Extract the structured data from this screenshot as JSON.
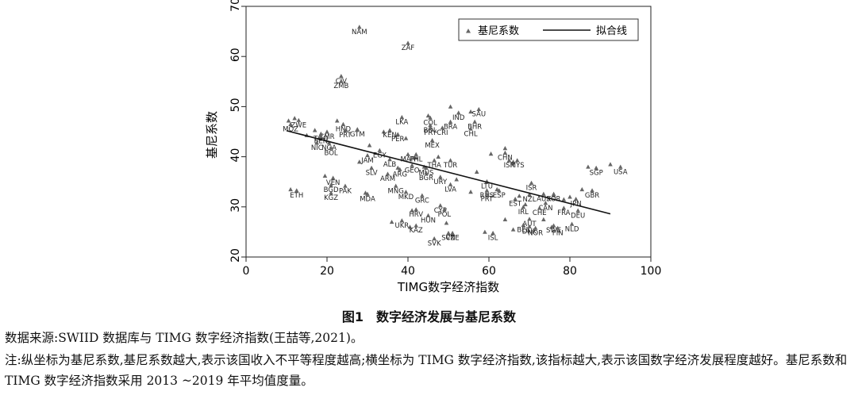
{
  "chart_data": {
    "type": "scatter",
    "xlabel": "TIMG数字经济指数",
    "ylabel": "基尼系数",
    "xlim": [
      0,
      100
    ],
    "ylim": [
      20,
      70
    ],
    "xticks": [
      0,
      20,
      40,
      60,
      80,
      100
    ],
    "yticks": [
      20,
      30,
      40,
      50,
      60,
      70
    ],
    "legend_position": "top-right",
    "grid": false,
    "legend": {
      "points": "基尼系数",
      "line": "拟合线"
    },
    "fit_line": {
      "x": [
        10,
        90
      ],
      "y": [
        45.2,
        28.6
      ]
    },
    "points": [
      {
        "label": "NAM",
        "x": 28.0,
        "y": 65.1
      },
      {
        "label": "ZAF",
        "x": 40.0,
        "y": 61.9
      },
      {
        "label": "CIV",
        "x": 23.5,
        "y": 55.3
      },
      {
        "label": "ZMB",
        "x": 23.5,
        "y": 54.3
      },
      {
        "label": "SAU",
        "x": 57.5,
        "y": 48.7
      },
      {
        "label": "IND",
        "x": 52.5,
        "y": 48.0
      },
      {
        "label": "LKA",
        "x": 38.5,
        "y": 47.1
      },
      {
        "label": "COL",
        "x": 45.5,
        "y": 47.0
      },
      {
        "label": "ZWE",
        "x": 13.0,
        "y": 46.5
      },
      {
        "label": "BHR",
        "x": 56.5,
        "y": 46.2
      },
      {
        "label": "BRA",
        "x": 50.5,
        "y": 46.2
      },
      {
        "label": "MOZ",
        "x": 11.0,
        "y": 45.7
      },
      {
        "label": "HND",
        "x": 24.0,
        "y": 45.7
      },
      {
        "label": "BOL",
        "x": 45.5,
        "y": 45.5
      },
      {
        "label": "PRY",
        "x": 45.5,
        "y": 45.0
      },
      {
        "label": "CRI",
        "x": 48.5,
        "y": 45.0
      },
      {
        "label": "CHL",
        "x": 55.5,
        "y": 44.8
      },
      {
        "label": "GTM",
        "x": 27.5,
        "y": 44.7
      },
      {
        "label": "PRT",
        "x": 24.5,
        "y": 44.5
      },
      {
        "label": "KEN",
        "x": 35.5,
        "y": 44.5
      },
      {
        "label": "CMR",
        "x": 20.0,
        "y": 44.2
      },
      {
        "label": "PER",
        "x": 37.5,
        "y": 43.7
      },
      {
        "label": "TGO",
        "x": 18.5,
        "y": 43.8
      },
      {
        "label": "BEN",
        "x": 18.5,
        "y": 43.3
      },
      {
        "label": "MEX",
        "x": 46.0,
        "y": 42.5
      },
      {
        "label": "NIC",
        "x": 17.5,
        "y": 42.0
      },
      {
        "label": "NGA",
        "x": 20.5,
        "y": 42.0
      },
      {
        "label": "BOL",
        "x": 21.0,
        "y": 41.0
      },
      {
        "label": "CHN",
        "x": 64.0,
        "y": 40.0
      },
      {
        "label": "EGY",
        "x": 33.0,
        "y": 40.5
      },
      {
        "label": "JAM",
        "x": 30.0,
        "y": 39.5
      },
      {
        "label": "MAR",
        "x": 40.0,
        "y": 39.7
      },
      {
        "label": "PHL",
        "x": 42.0,
        "y": 39.7
      },
      {
        "label": "ALB",
        "x": 35.5,
        "y": 38.7
      },
      {
        "label": "THA",
        "x": 46.5,
        "y": 38.5
      },
      {
        "label": "TUR",
        "x": 50.5,
        "y": 38.5
      },
      {
        "label": "ISR",
        "x": 65.0,
        "y": 38.5
      },
      {
        "label": "MYS",
        "x": 67.0,
        "y": 38.5
      },
      {
        "label": "SGP",
        "x": 86.5,
        "y": 37.0
      },
      {
        "label": "USA",
        "x": 92.5,
        "y": 37.2
      },
      {
        "label": "SLV",
        "x": 31.0,
        "y": 37.0
      },
      {
        "label": "GEO",
        "x": 41.0,
        "y": 37.5
      },
      {
        "label": "MUS",
        "x": 44.5,
        "y": 37.0
      },
      {
        "label": "ARG",
        "x": 38.0,
        "y": 36.7
      },
      {
        "label": "ARM",
        "x": 35.0,
        "y": 35.8
      },
      {
        "label": "BGR",
        "x": 44.5,
        "y": 36.0
      },
      {
        "label": "URY",
        "x": 48.0,
        "y": 35.2
      },
      {
        "label": "VEN",
        "x": 21.5,
        "y": 35.0
      },
      {
        "label": "LTU",
        "x": 59.5,
        "y": 34.3
      },
      {
        "label": "ISR",
        "x": 70.5,
        "y": 34.0
      },
      {
        "label": "LVA",
        "x": 50.5,
        "y": 33.7
      },
      {
        "label": "BGD",
        "x": 21.0,
        "y": 33.6
      },
      {
        "label": "PAK",
        "x": 24.5,
        "y": 33.4
      },
      {
        "label": "MNG",
        "x": 37.0,
        "y": 33.4
      },
      {
        "label": "GBR",
        "x": 85.5,
        "y": 32.5
      },
      {
        "label": "KGZ",
        "x": 21.0,
        "y": 32.0
      },
      {
        "label": "ETH",
        "x": 12.5,
        "y": 32.5
      },
      {
        "label": "MDA",
        "x": 30.0,
        "y": 31.8
      },
      {
        "label": "MKD",
        "x": 39.5,
        "y": 32.2
      },
      {
        "label": "GRC",
        "x": 43.5,
        "y": 31.5
      },
      {
        "label": "RUS",
        "x": 59.5,
        "y": 32.5
      },
      {
        "label": "ESP",
        "x": 62.5,
        "y": 32.5
      },
      {
        "label": "PRT",
        "x": 59.5,
        "y": 31.8
      },
      {
        "label": "NZL",
        "x": 70.0,
        "y": 31.7
      },
      {
        "label": "AUS",
        "x": 73.5,
        "y": 31.8
      },
      {
        "label": "KOR",
        "x": 76.0,
        "y": 31.8
      },
      {
        "label": "JPN",
        "x": 81.5,
        "y": 30.8
      },
      {
        "label": "EST",
        "x": 66.5,
        "y": 30.8
      },
      {
        "label": "CAN",
        "x": 74.0,
        "y": 30.0
      },
      {
        "label": "IRL",
        "x": 68.5,
        "y": 29.2
      },
      {
        "label": "CHE",
        "x": 72.5,
        "y": 29.0
      },
      {
        "label": "FRA",
        "x": 78.5,
        "y": 29.0
      },
      {
        "label": "DEU",
        "x": 82.0,
        "y": 28.5
      },
      {
        "label": "CYP",
        "x": 48.0,
        "y": 29.5
      },
      {
        "label": "HRV",
        "x": 42.0,
        "y": 28.7
      },
      {
        "label": "POL",
        "x": 49.0,
        "y": 28.7
      },
      {
        "label": "HUN",
        "x": 45.0,
        "y": 27.5
      },
      {
        "label": "AUT",
        "x": 70.0,
        "y": 26.8
      },
      {
        "label": "UKR",
        "x": 38.5,
        "y": 26.5
      },
      {
        "label": "BEL",
        "x": 68.5,
        "y": 25.6
      },
      {
        "label": "DNK",
        "x": 70.0,
        "y": 25.3
      },
      {
        "label": "NOR",
        "x": 71.5,
        "y": 25.0
      },
      {
        "label": "SWE",
        "x": 76.0,
        "y": 25.5
      },
      {
        "label": "FIN",
        "x": 77.0,
        "y": 25.0
      },
      {
        "label": "NLD",
        "x": 80.5,
        "y": 25.8
      },
      {
        "label": "KAZ",
        "x": 42.0,
        "y": 25.5
      },
      {
        "label": "SVN",
        "x": 50.0,
        "y": 24.0
      },
      {
        "label": "CZE",
        "x": 51.0,
        "y": 24.0
      },
      {
        "label": "ISL",
        "x": 61.0,
        "y": 24.0
      },
      {
        "label": "SVK",
        "x": 46.5,
        "y": 22.9
      }
    ],
    "unlabeled_points": [
      {
        "x": 10.5,
        "y": 47.2
      },
      {
        "x": 12.0,
        "y": 47.7
      },
      {
        "x": 15.0,
        "y": 44.3
      },
      {
        "x": 17.0,
        "y": 45.3
      },
      {
        "x": 22.5,
        "y": 47.2
      },
      {
        "x": 19.5,
        "y": 36.2
      },
      {
        "x": 11.0,
        "y": 33.5
      },
      {
        "x": 29.5,
        "y": 32.8
      },
      {
        "x": 30.5,
        "y": 42.3
      },
      {
        "x": 34.0,
        "y": 45.0
      },
      {
        "x": 39.5,
        "y": 43.7
      },
      {
        "x": 42.0,
        "y": 39.8
      },
      {
        "x": 45.0,
        "y": 48.2
      },
      {
        "x": 47.5,
        "y": 40.0
      },
      {
        "x": 50.5,
        "y": 50.0
      },
      {
        "x": 55.5,
        "y": 49.0
      },
      {
        "x": 60.5,
        "y": 40.6
      },
      {
        "x": 64.0,
        "y": 41.7
      },
      {
        "x": 66.0,
        "y": 39.0
      },
      {
        "x": 67.5,
        "y": 32.2
      },
      {
        "x": 76.0,
        "y": 32.3
      },
      {
        "x": 78.5,
        "y": 31.5
      },
      {
        "x": 80.0,
        "y": 32.0
      },
      {
        "x": 83.0,
        "y": 33.5
      },
      {
        "x": 84.5,
        "y": 38.0
      },
      {
        "x": 90.0,
        "y": 38.5
      },
      {
        "x": 36.0,
        "y": 27.0
      },
      {
        "x": 40.5,
        "y": 26.0
      },
      {
        "x": 41.0,
        "y": 29.3
      },
      {
        "x": 49.5,
        "y": 26.8
      },
      {
        "x": 51.0,
        "y": 24.5
      },
      {
        "x": 59.0,
        "y": 25.0
      },
      {
        "x": 64.0,
        "y": 27.5
      },
      {
        "x": 66.0,
        "y": 25.5
      },
      {
        "x": 73.5,
        "y": 27.5
      },
      {
        "x": 75.5,
        "y": 26.0
      },
      {
        "x": 37.5,
        "y": 37.8
      },
      {
        "x": 44.0,
        "y": 38.0
      },
      {
        "x": 52.0,
        "y": 35.5
      },
      {
        "x": 55.5,
        "y": 33.0
      },
      {
        "x": 62.0,
        "y": 33.5
      },
      {
        "x": 69.0,
        "y": 30.5
      },
      {
        "x": 57.0,
        "y": 37.0
      },
      {
        "x": 28.0,
        "y": 39.0
      }
    ]
  },
  "caption": "图1　数字经济发展与基尼系数",
  "notes": {
    "source": "数据来源:SWIID 数据库与 TIMG 数字经济指数(王喆等,2021)。",
    "explanation": "注:纵坐标为基尼系数,基尼系数越大,表示该国收入不平等程度越高;横坐标为 TIMG 数字经济指数,该指标越大,表示该国数字经济发展程度越好。基尼系数和 TIMG 数字经济指数采用 2013 ~2019 年平均值度量。"
  }
}
